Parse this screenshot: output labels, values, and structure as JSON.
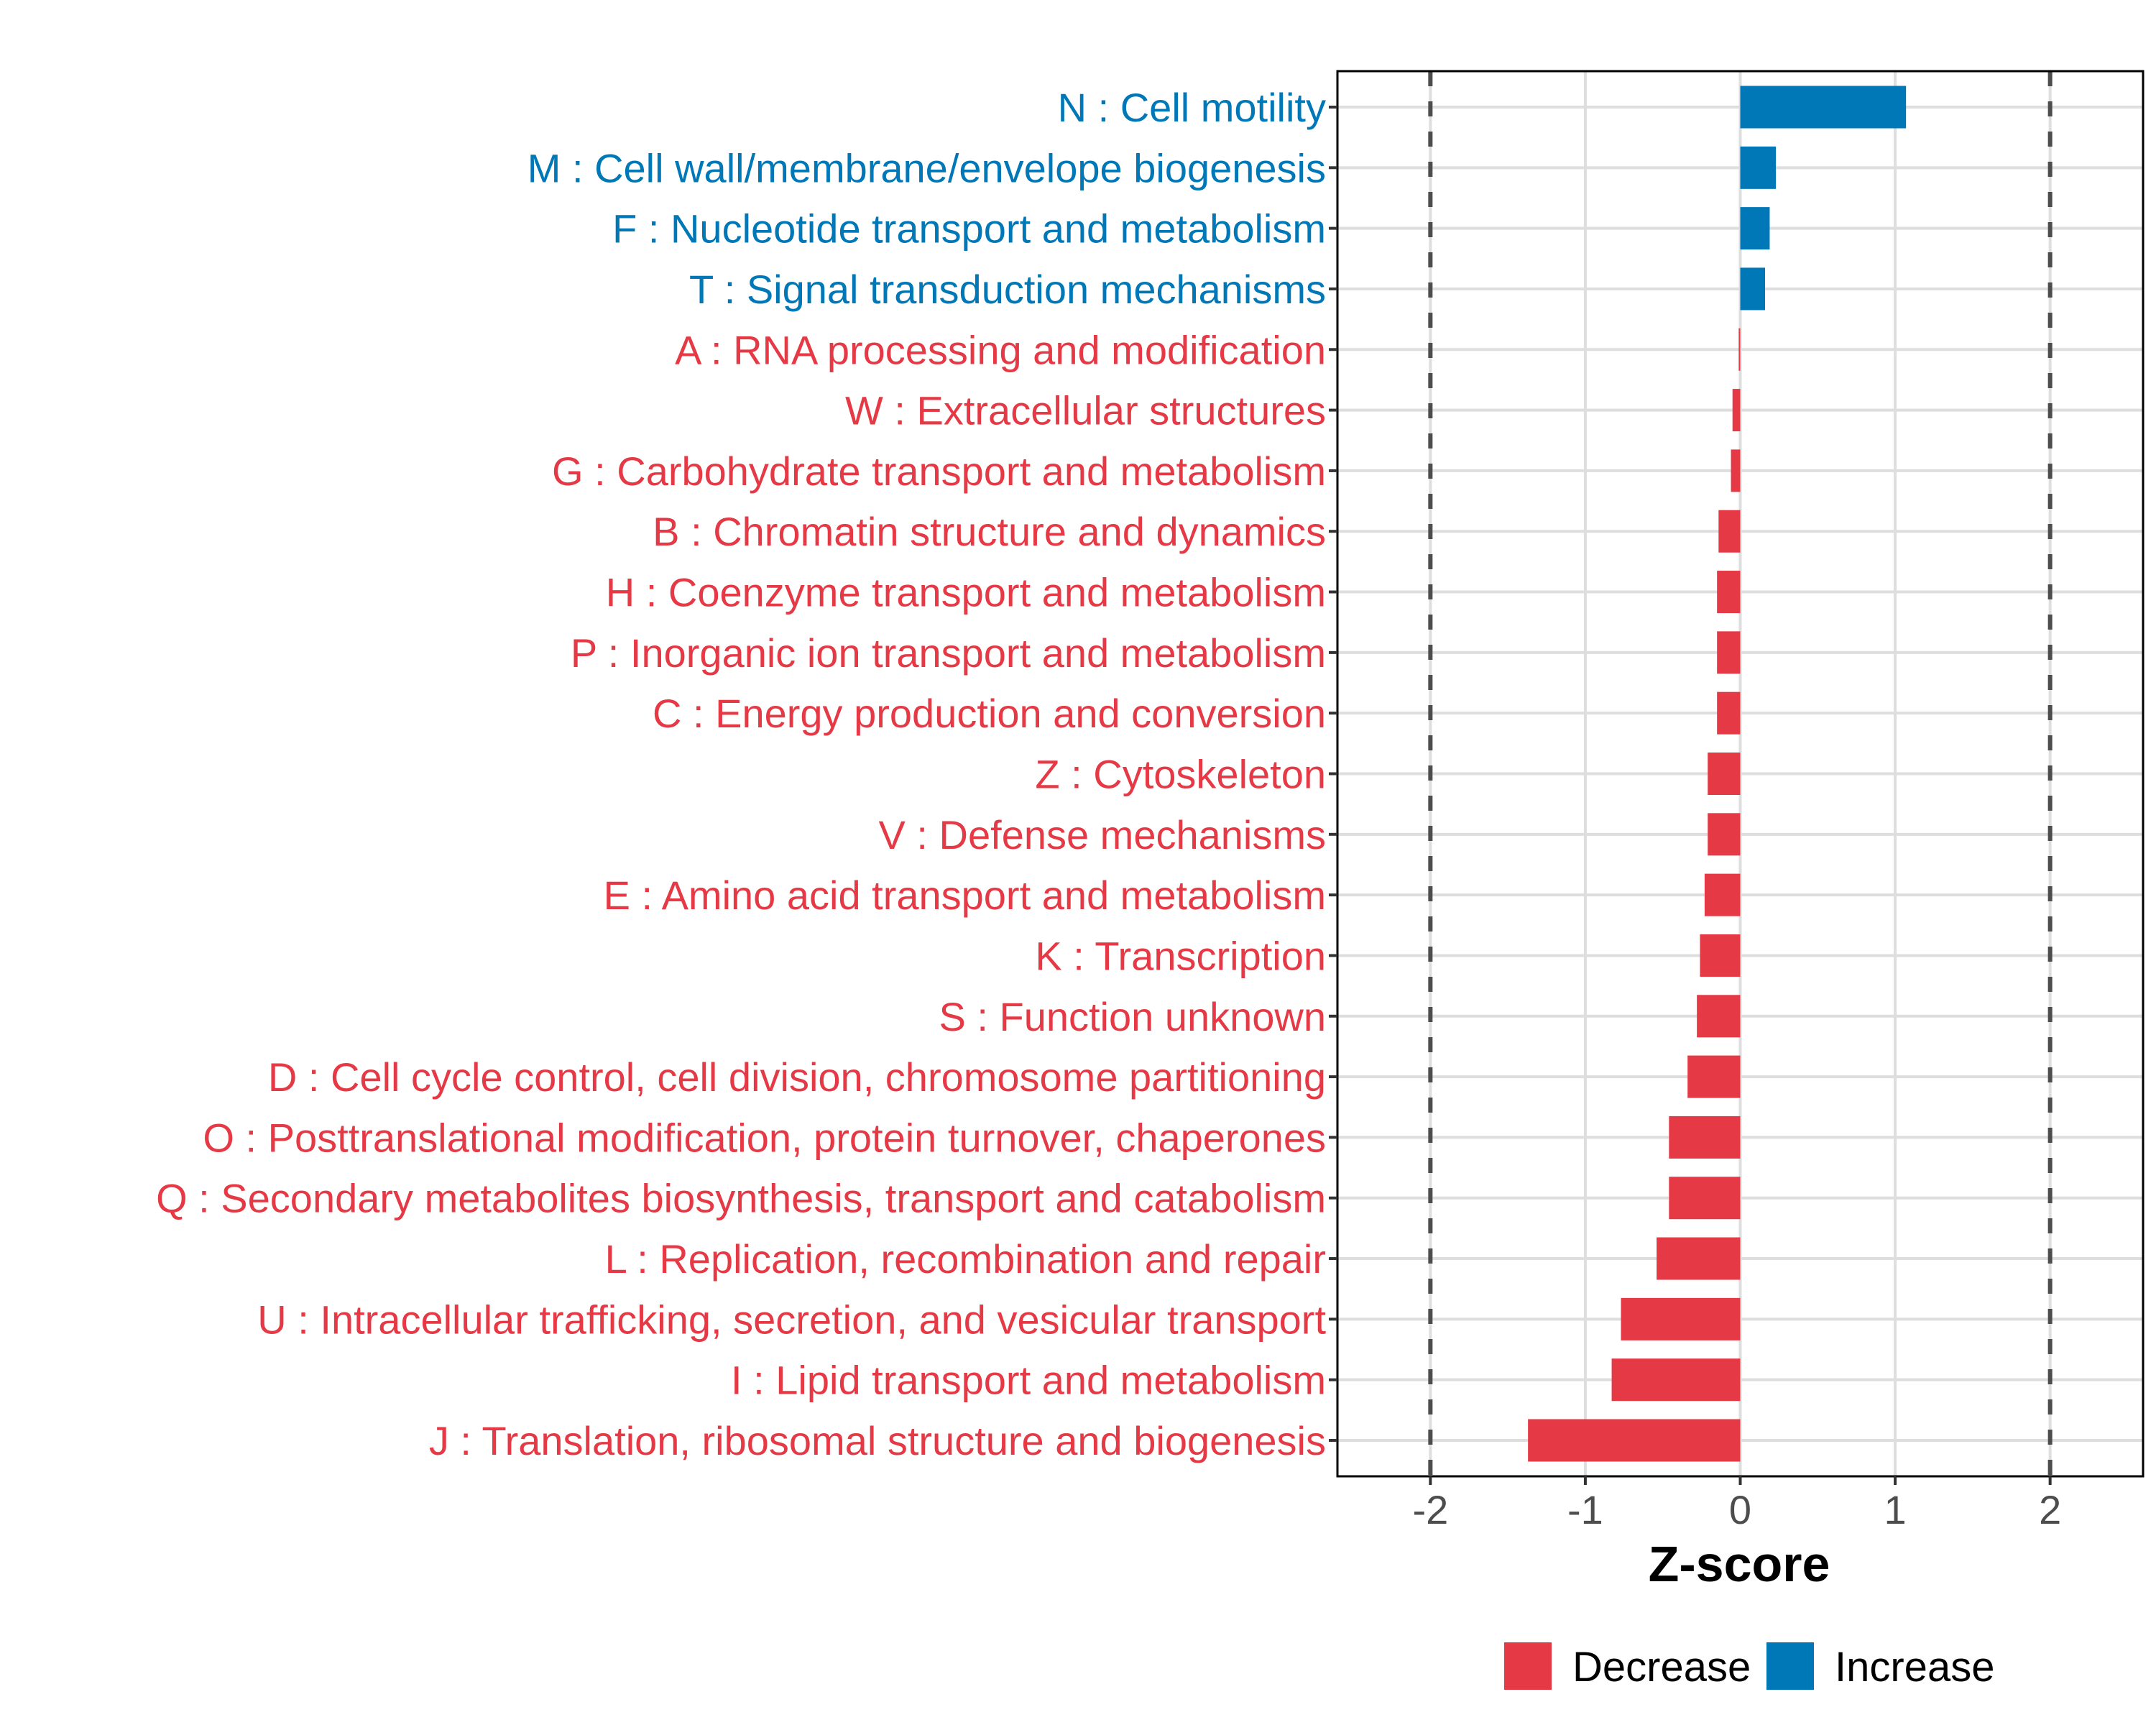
{
  "chart_data": {
    "type": "bar",
    "orientation": "horizontal",
    "title": "",
    "xlabel": "Z-score",
    "ylabel": "",
    "xlim": [
      -2.6,
      2.6
    ],
    "x_ticks": [
      -2,
      -1,
      0,
      1,
      2
    ],
    "x_tick_labels": [
      "-2",
      "-1",
      "0",
      "1",
      "2"
    ],
    "reference_lines": [
      -2,
      2
    ],
    "reference_line_style": "dashed",
    "grid": true,
    "legend_position": "bottom",
    "legend": [
      {
        "label": "Decrease",
        "color": "#E63946"
      },
      {
        "label": "Increase",
        "color": "#0077B6"
      }
    ],
    "colors": {
      "Decrease": "#E63946",
      "Increase": "#0077B6"
    },
    "categories": [
      "N : Cell motility",
      "M : Cell wall/membrane/envelope biogenesis",
      "F : Nucleotide transport and metabolism",
      "T : Signal transduction mechanisms",
      "A : RNA processing and modification",
      "W : Extracellular structures",
      "G : Carbohydrate transport and metabolism",
      "B : Chromatin structure and dynamics",
      "H : Coenzyme transport and metabolism",
      "P : Inorganic ion transport and metabolism",
      "C : Energy production and conversion",
      "Z : Cytoskeleton",
      "V : Defense mechanisms",
      "E : Amino acid transport and metabolism",
      "K : Transcription",
      "S : Function unknown",
      "D : Cell cycle control, cell division, chromosome partitioning",
      "O : Posttranslational modification, protein turnover, chaperones",
      "Q : Secondary metabolites biosynthesis, transport and catabolism",
      "L : Replication, recombination and repair",
      "U : Intracellular trafficking, secretion, and vesicular transport",
      "I : Lipid transport and metabolism",
      "J : Translation, ribosomal structure and biogenesis"
    ],
    "values": [
      1.07,
      0.23,
      0.19,
      0.16,
      -0.01,
      -0.05,
      -0.06,
      -0.14,
      -0.15,
      -0.15,
      -0.15,
      -0.21,
      -0.21,
      -0.23,
      -0.26,
      -0.28,
      -0.34,
      -0.46,
      -0.46,
      -0.54,
      -0.77,
      -0.83,
      -1.37
    ],
    "groups": [
      "Increase",
      "Increase",
      "Increase",
      "Increase",
      "Decrease",
      "Decrease",
      "Decrease",
      "Decrease",
      "Decrease",
      "Decrease",
      "Decrease",
      "Decrease",
      "Decrease",
      "Decrease",
      "Decrease",
      "Decrease",
      "Decrease",
      "Decrease",
      "Decrease",
      "Decrease",
      "Decrease",
      "Decrease",
      "Decrease"
    ]
  }
}
